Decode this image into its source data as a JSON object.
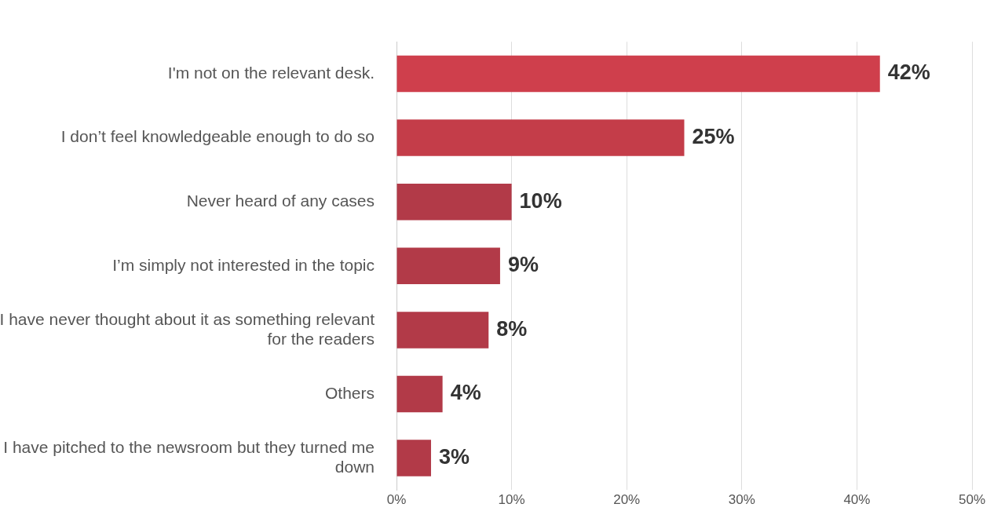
{
  "chart_data": {
    "type": "bar",
    "orientation": "horizontal",
    "categories": [
      "I'm not on the relevant desk.",
      "I don’t feel knowledgeable enough to do so",
      "Never heard of any cases",
      "I’m simply not interested in the topic",
      "I have never thought about it as something relevant for the readers",
      "Others",
      "I have pitched to the newsroom but they turned me down"
    ],
    "values": [
      42,
      25,
      10,
      9,
      8,
      4,
      3
    ],
    "colors": [
      "#cf3f4c",
      "#c43d49",
      "#b23a48",
      "#b23a48",
      "#b23a48",
      "#b23a48",
      "#b23a48"
    ],
    "value_labels": [
      "42%",
      "25%",
      "10%",
      "9%",
      "8%",
      "4%",
      "3%"
    ],
    "xlim": [
      0,
      50
    ],
    "xticks": [
      {
        "value": 0,
        "label": "0%"
      },
      {
        "value": 10,
        "label": "10%"
      },
      {
        "value": 20,
        "label": "20%"
      },
      {
        "value": 30,
        "label": "30%"
      },
      {
        "value": 40,
        "label": "40%"
      },
      {
        "value": 50,
        "label": "50%"
      }
    ],
    "grid": "x",
    "legend": false
  }
}
